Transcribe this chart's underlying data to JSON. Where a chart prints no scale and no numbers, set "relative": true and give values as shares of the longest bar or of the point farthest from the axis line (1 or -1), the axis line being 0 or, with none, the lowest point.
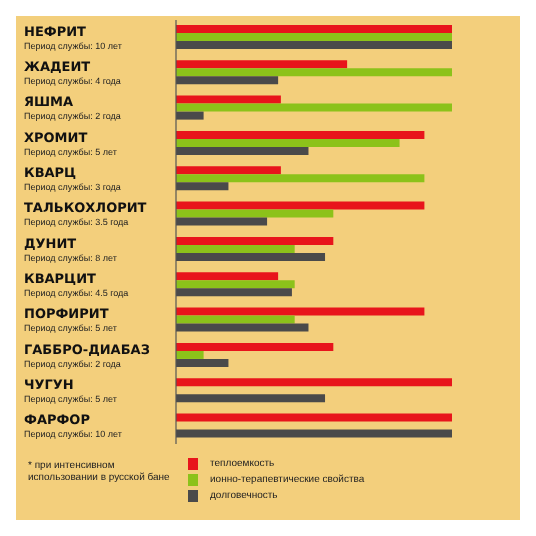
{
  "chart_data": {
    "type": "bar",
    "orientation": "horizontal",
    "relative": true,
    "categories": [
      "НЕФРИТ\nПериод службы: 10 лет",
      "ЖАДЕИТ\nПериод службы: 4 года",
      "ЯШМА\nПериод службы: 2 года",
      "ХРОМИТ\nПериод службы: 5 лет",
      "КВАРЦ\nПериод службы: 3 года",
      "ТАЛЬКОХЛОРИТ\nПериод службы: 3.5 года",
      "ДУНИТ\nПериод службы: 8 лет",
      "КВАРЦИТ\nПериод службы: 4.5 года",
      "ПОРФИРИТ\nПериод службы: 5 лет",
      "ГАББРО-ДИАБАЗ\nПериод службы: 2 года",
      "ЧУГУН\nПериод службы: 5 лет",
      "ФАРФОР\nПериод службы: 10 лет"
    ],
    "series": [
      {
        "name": "теплоемкость",
        "color": "#e8141b",
        "values": [
          1,
          0.62,
          0.38,
          0.9,
          0.38,
          0.9,
          0.57,
          0.37,
          0.9,
          0.57,
          1,
          1
        ]
      },
      {
        "name": "ионно-терапевтические свойства",
        "color": "#8cc21a",
        "values": [
          1,
          1,
          1,
          0.81,
          0.9,
          0.57,
          0.43,
          0.43,
          0.43,
          0.1,
          null,
          null
        ]
      },
      {
        "name": "долговечность",
        "color": "#4a4a4a",
        "values": [
          1,
          0.37,
          0.1,
          0.48,
          0.19,
          0.33,
          0.54,
          0.42,
          0.48,
          0.19,
          0.54,
          1
        ]
      }
    ],
    "legend": "bottom",
    "grid": false,
    "annotations": [
      "* при интенсивном использовании в русской бане"
    ]
  }
}
